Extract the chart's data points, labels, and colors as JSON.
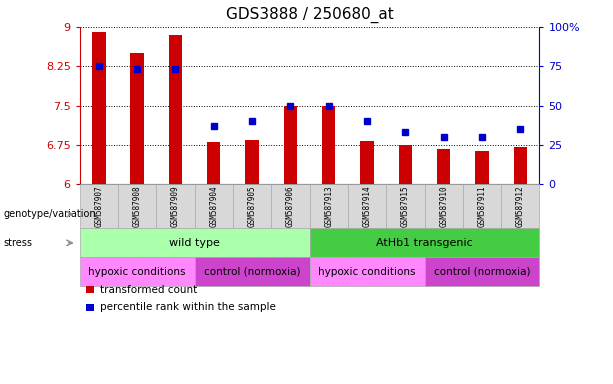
{
  "title": "GDS3888 / 250680_at",
  "samples": [
    "GSM587907",
    "GSM587908",
    "GSM587909",
    "GSM587904",
    "GSM587905",
    "GSM587906",
    "GSM587913",
    "GSM587914",
    "GSM587915",
    "GSM587910",
    "GSM587911",
    "GSM587912"
  ],
  "bar_values": [
    8.9,
    8.5,
    8.85,
    6.8,
    6.85,
    7.5,
    7.5,
    6.82,
    6.75,
    6.68,
    6.63,
    6.72
  ],
  "percentile_values": [
    75,
    73,
    73,
    37,
    40,
    50,
    50,
    40,
    33,
    30,
    30,
    35
  ],
  "ylim_left": [
    6,
    9
  ],
  "ylim_right": [
    0,
    100
  ],
  "yticks_left": [
    6,
    6.75,
    7.5,
    8.25,
    9
  ],
  "ytick_labels_left": [
    "6",
    "6.75",
    "7.5",
    "8.25",
    "9"
  ],
  "yticks_right": [
    0,
    25,
    50,
    75,
    100
  ],
  "ytick_labels_right": [
    "0",
    "25",
    "50",
    "75",
    "100%"
  ],
  "bar_color": "#cc0000",
  "dot_color": "#0000cc",
  "bar_bottom": 6,
  "genotype_groups": [
    {
      "label": "wild type",
      "start": 0,
      "end": 6,
      "color": "#aaffaa"
    },
    {
      "label": "AtHb1 transgenic",
      "start": 6,
      "end": 12,
      "color": "#44cc44"
    }
  ],
  "stress_groups": [
    {
      "label": "hypoxic conditions",
      "start": 0,
      "end": 3,
      "color": "#ff88ff"
    },
    {
      "label": "control (normoxia)",
      "start": 3,
      "end": 6,
      "color": "#cc44cc"
    },
    {
      "label": "hypoxic conditions",
      "start": 6,
      "end": 9,
      "color": "#ff88ff"
    },
    {
      "label": "control (normoxia)",
      "start": 9,
      "end": 12,
      "color": "#cc44cc"
    }
  ],
  "legend_items": [
    {
      "label": "transformed count",
      "color": "#cc0000"
    },
    {
      "label": "percentile rank within the sample",
      "color": "#0000cc"
    }
  ],
  "left_axis_color": "#cc0000",
  "right_axis_color": "#0000cc",
  "sample_box_color": "#d8d8d8",
  "bar_width": 0.35
}
